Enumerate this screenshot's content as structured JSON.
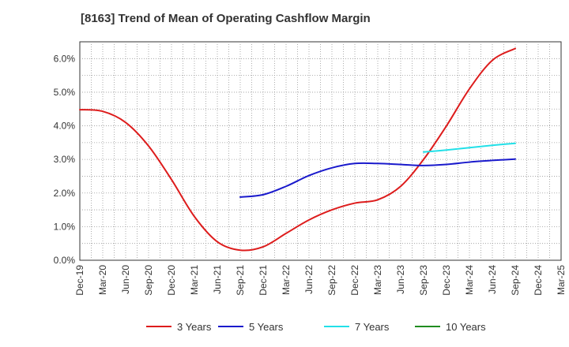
{
  "chart_data": {
    "type": "line",
    "title": "[8163]  Trend of Mean of Operating Cashflow Margin",
    "xlabel": "",
    "ylabel": "",
    "ylim": [
      0,
      6.5
    ],
    "yticks": [
      "0.0%",
      "1.0%",
      "2.0%",
      "3.0%",
      "4.0%",
      "5.0%",
      "6.0%"
    ],
    "ytick_values": [
      0,
      1,
      2,
      3,
      4,
      5,
      6
    ],
    "categories": [
      "Dec-19",
      "Mar-20",
      "Jun-20",
      "Sep-20",
      "Dec-20",
      "Mar-21",
      "Jun-21",
      "Sep-21",
      "Dec-21",
      "Mar-22",
      "Jun-22",
      "Sep-22",
      "Dec-22",
      "Mar-23",
      "Jun-23",
      "Sep-23",
      "Dec-23",
      "Mar-24",
      "Jun-24",
      "Sep-24",
      "Dec-24",
      "Mar-25"
    ],
    "grid": true,
    "legend_position": "bottom",
    "series": [
      {
        "name": "3 Years",
        "color": "#dd1c1c",
        "values": [
          4.48,
          4.43,
          4.1,
          3.4,
          2.4,
          1.3,
          0.55,
          0.3,
          0.4,
          0.8,
          1.2,
          1.5,
          1.7,
          1.8,
          2.2,
          3.0,
          4.0,
          5.1,
          5.95,
          6.3,
          null,
          null
        ]
      },
      {
        "name": "5 Years",
        "color": "#1a1acc",
        "values": [
          null,
          null,
          null,
          null,
          null,
          null,
          null,
          1.88,
          1.95,
          2.2,
          2.52,
          2.75,
          2.88,
          2.88,
          2.85,
          2.82,
          2.85,
          2.92,
          2.97,
          3.01,
          null,
          null
        ]
      },
      {
        "name": "7 Years",
        "color": "#22e0e8",
        "values": [
          null,
          null,
          null,
          null,
          null,
          null,
          null,
          null,
          null,
          null,
          null,
          null,
          null,
          null,
          null,
          3.22,
          3.28,
          3.35,
          3.42,
          3.48,
          null,
          null
        ]
      },
      {
        "name": "10 Years",
        "color": "#1f8c1f",
        "values": [
          null,
          null,
          null,
          null,
          null,
          null,
          null,
          null,
          null,
          null,
          null,
          null,
          null,
          null,
          null,
          null,
          null,
          null,
          null,
          null,
          null,
          null
        ]
      }
    ]
  }
}
